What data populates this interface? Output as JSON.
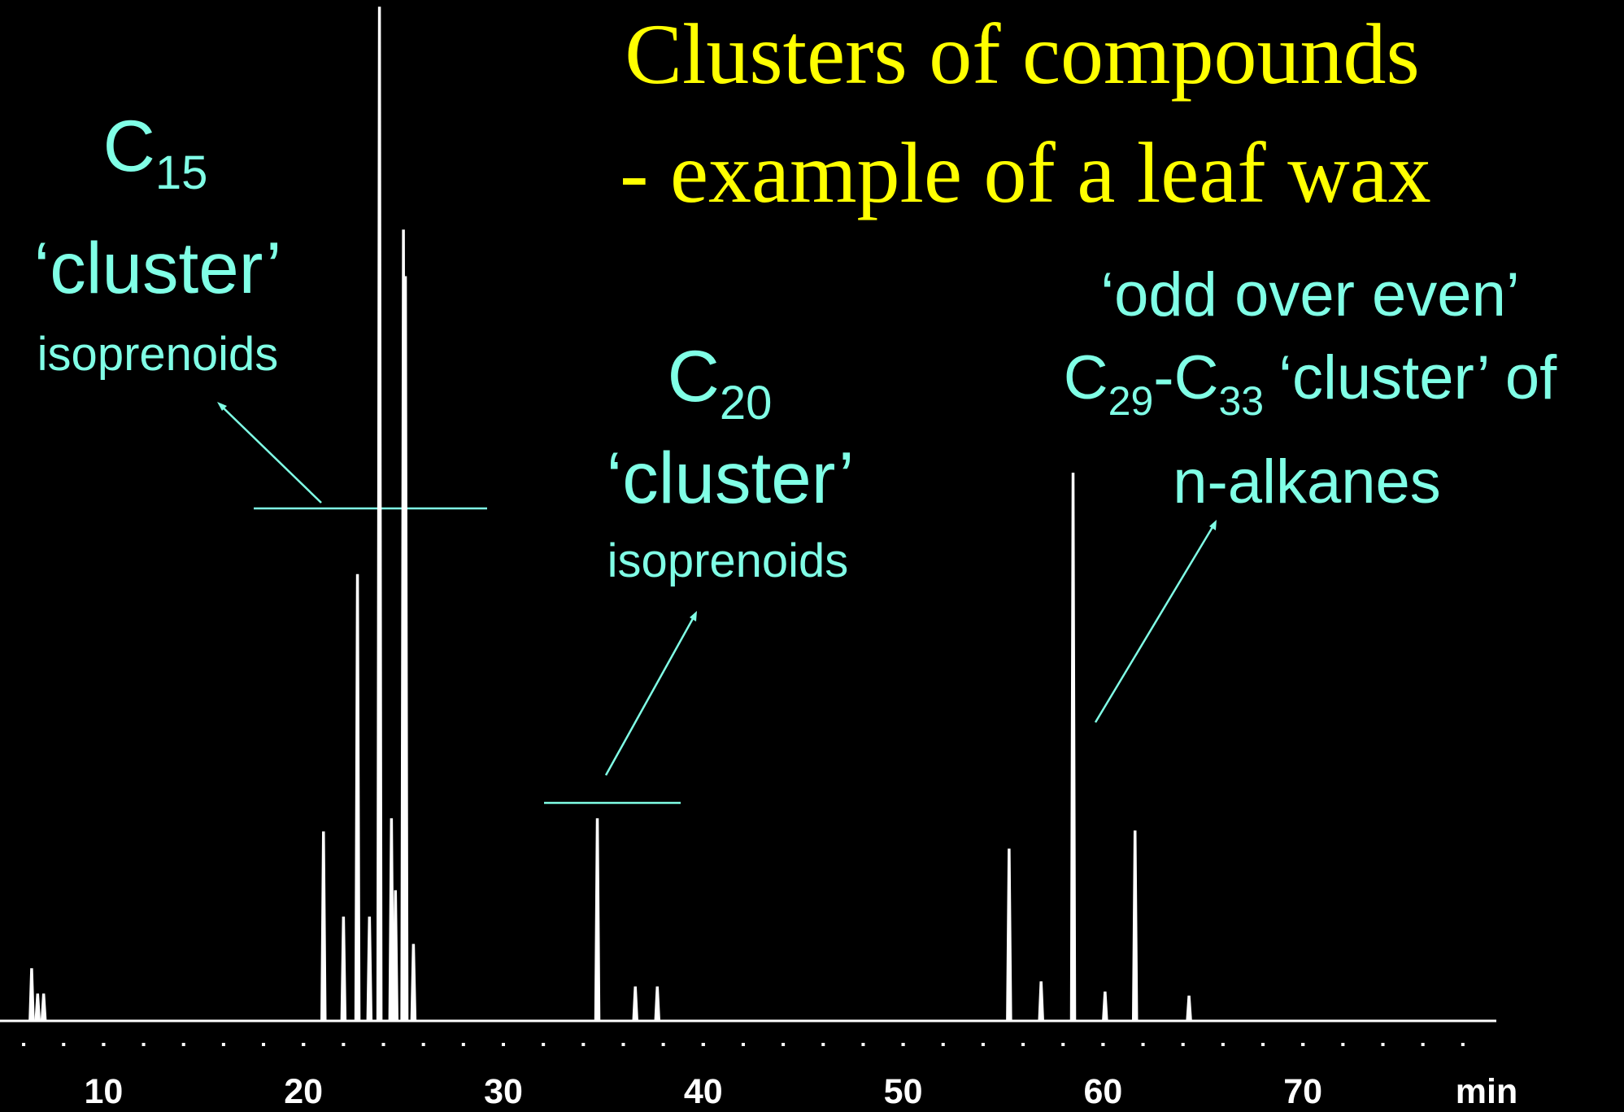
{
  "chart_data": {
    "type": "chromatogram",
    "title": "Clusters of compounds",
    "subtitle": "- example of a leaf wax",
    "xlabel": "min",
    "color": "#ffffff",
    "x": [
      6.4,
      6.7,
      7.0,
      21.0,
      22.0,
      22.7,
      23.3,
      23.8,
      24.4,
      24.6,
      25.0,
      25.1,
      25.5,
      34.7,
      36.6,
      37.7,
      55.3,
      56.9,
      58.5,
      60.1,
      61.6,
      64.3
    ],
    "y": [
      5.1,
      2.6,
      2.6,
      18.6,
      10.2,
      44.0,
      10.2,
      100,
      19.9,
      12.8,
      78.0,
      73.4,
      7.5,
      19.9,
      3.3,
      3.3,
      16.9,
      3.8,
      54.0,
      2.8,
      18.7,
      2.4
    ],
    "xlim": [
      5,
      80
    ],
    "ylim": [
      0,
      100
    ],
    "xticks": [
      10,
      20,
      30,
      40,
      50,
      60,
      70
    ],
    "xminor_ticks": [
      6,
      8,
      10,
      12,
      14,
      16,
      18,
      20,
      22,
      24,
      26,
      28,
      30,
      32,
      34,
      36,
      38,
      40,
      42,
      44,
      46,
      48,
      50,
      52,
      54,
      56,
      58,
      60,
      62,
      64,
      66,
      68,
      70,
      72,
      74,
      76,
      78
    ],
    "annotations": [
      {
        "label": "C",
        "sub": "15",
        "line2": "‘cluster’",
        "line3": "isoprenoids"
      },
      {
        "label": "C",
        "sub": "20",
        "line2": "‘cluster’",
        "line3": "isoprenoids"
      },
      {
        "line1": "‘odd over even’",
        "label": "C",
        "sub": "29",
        "label2": "-C",
        "sub2": "33",
        "tail": "‘cluster’ of",
        "line3": "n-alkanes"
      }
    ]
  }
}
